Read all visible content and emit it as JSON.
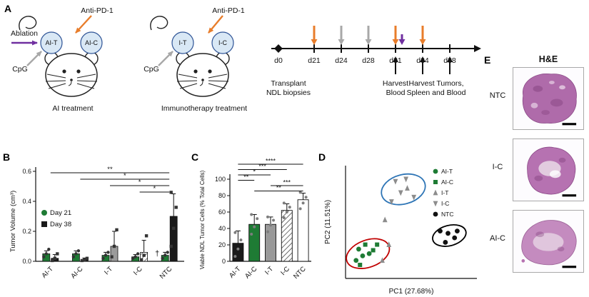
{
  "panels": {
    "a": "A",
    "b": "B",
    "c": "C",
    "d": "D",
    "e": "E"
  },
  "panel_a": {
    "anti_pd1_label": "Anti-PD-1",
    "ablation_label": "Ablation",
    "cpg_label": "CpG",
    "mouse1": {
      "tumor_left": "AI-T",
      "tumor_right": "AI-C",
      "caption": "AI treatment"
    },
    "mouse2": {
      "tumor_left": "I-T",
      "tumor_right": "I-C",
      "caption": "Immunotherapy treatment"
    },
    "colors": {
      "orange": "#E87D2B",
      "purple": "#7030A0",
      "gray": "#A8A8A8",
      "tumor_fill": "#D9E8F5",
      "tumor_stroke": "#2F5496"
    },
    "timeline": {
      "days": [
        "d0",
        "d21",
        "d24",
        "d28",
        "d31",
        "d34",
        "d38"
      ],
      "arrows_above": [
        {
          "day": "d21",
          "color": "#E87D2B",
          "short": false
        },
        {
          "day": "d24",
          "color": "#A8A8A8",
          "short": false
        },
        {
          "day": "d28",
          "color": "#A8A8A8",
          "short": false
        },
        {
          "day": "d31",
          "color": "#E87D2B",
          "short": false
        },
        {
          "day": "d31",
          "color": "#7030A0",
          "short": true
        },
        {
          "day": "d34",
          "color": "#E87D2B",
          "short": false
        }
      ],
      "events": [
        {
          "day": "d0",
          "text": "Transplant\nNDL biopsies",
          "arrows": []
        },
        {
          "day": "d31",
          "text": "Harvest\nBlood",
          "arrows": [
            "d31"
          ]
        },
        {
          "day": "d34",
          "text": "Harvest Tumors,\nSpleen and Blood",
          "arrows": [
            "d34",
            "d38"
          ],
          "center_between": [
            "d34",
            "d38"
          ]
        }
      ]
    }
  },
  "chart_data": [
    {
      "id": "tumor_volume",
      "type": "bar",
      "ylabel": "Tumor Volume (cm³)",
      "ylim": [
        0,
        0.6
      ],
      "yticks": [
        0,
        0.2,
        0.4,
        0.6
      ],
      "ytick_labels": [
        "0.0",
        "0.2",
        "0.4",
        "0.6"
      ],
      "categories": [
        "AI-T",
        "AI-C",
        "I-T",
        "I-C",
        "NTC"
      ],
      "series": [
        {
          "name": "Day 21",
          "marker": "circle",
          "color": "#1E7B34",
          "values": [
            0.05,
            0.05,
            0.04,
            0.03,
            0.04
          ],
          "errors": [
            0.02,
            0.02,
            0.02,
            0.015,
            0.02
          ],
          "points": [
            [
              0.03,
              0.05,
              0.08
            ],
            [
              0.03,
              0.05,
              0.07
            ],
            [
              0.02,
              0.04,
              0.06
            ],
            [
              0.02,
              0.03,
              0.05
            ],
            [
              0.02,
              0.04,
              0.06
            ]
          ]
        },
        {
          "name": "Day 38",
          "marker": "square",
          "color": "#1a1a1a",
          "values": [
            0.02,
            0.01,
            0.1,
            0.06,
            0.3
          ],
          "errors": [
            0.025,
            0.012,
            0.1,
            0.08,
            0.15
          ],
          "points": [
            [
              0.005,
              0.02,
              0.05
            ],
            [
              0.005,
              0.01,
              0.02
            ],
            [
              0.03,
              0.1,
              0.21
            ],
            [
              0.01,
              0.04,
              0.17
            ],
            [
              0.1,
              0.22,
              0.36,
              0.46
            ]
          ]
        }
      ],
      "bar_styles_day38": [
        "solid",
        "solid",
        "gray",
        "hatch",
        "solid"
      ],
      "significance": [
        {
          "from": "AI-T",
          "to": "NTC",
          "label": "**"
        },
        {
          "from": "AI-C",
          "to": "NTC",
          "label": "*"
        },
        {
          "from": "I-T",
          "to": "NTC",
          "label": "*"
        },
        {
          "from": "I-C",
          "to": "NTC",
          "label": "*"
        }
      ],
      "dagger": {
        "category": "NTC",
        "label": "†"
      }
    },
    {
      "id": "viable_cells",
      "type": "bar",
      "ylabel": "Viable NDL Tumor Cells (% Total Cells)",
      "ylim": [
        0,
        100
      ],
      "yticks": [
        0,
        20,
        40,
        60,
        80,
        100
      ],
      "ytick_labels": [
        "0",
        "20",
        "40",
        "60",
        "80",
        "100"
      ],
      "categories": [
        "AI-T",
        "AI-C",
        "I-T",
        "I-C",
        "NTC"
      ],
      "values": [
        22,
        45,
        45,
        62,
        75
      ],
      "errors": [
        15,
        12,
        9,
        8,
        8
      ],
      "points": [
        [
          6,
          15,
          26,
          35
        ],
        [
          33,
          42,
          52,
          57
        ],
        [
          36,
          44,
          50,
          54
        ],
        [
          53,
          60,
          66,
          71
        ],
        [
          64,
          71,
          78,
          84
        ]
      ],
      "styles": [
        "black",
        "green",
        "gray",
        "hatch",
        "white"
      ],
      "significance": [
        {
          "from": "AI-T",
          "to": "NTC",
          "label": "****"
        },
        {
          "from": "AI-T",
          "to": "I-C",
          "label": "***"
        },
        {
          "from": "AI-T",
          "to": "I-T",
          "label": "*"
        },
        {
          "from": "AI-T",
          "to": "AI-C",
          "label": "**"
        },
        {
          "from": "I-T",
          "to": "NTC",
          "label": "***"
        },
        {
          "from": "AI-C",
          "to": "NTC",
          "label": "**"
        }
      ]
    },
    {
      "id": "pca",
      "type": "scatter",
      "xlabel": "PC1 (27.68%)",
      "ylabel": "PC2 (11.51%)",
      "series": [
        {
          "name": "AI-T",
          "marker": "circle",
          "color": "#1E7B34",
          "points": [
            [
              0.1,
              0.26
            ],
            [
              0.13,
              0.2
            ],
            [
              0.08,
              0.16
            ],
            [
              0.18,
              0.22
            ]
          ]
        },
        {
          "name": "AI-C",
          "marker": "square",
          "color": "#1E7B34",
          "points": [
            [
              0.15,
              0.3
            ],
            [
              0.21,
              0.25
            ],
            [
              0.11,
              0.12
            ],
            [
              0.24,
              0.3
            ]
          ]
        },
        {
          "name": "I-T",
          "marker": "triangle-up",
          "color": "#8C8C8C",
          "points": [
            [
              0.28,
              0.16
            ],
            [
              0.33,
              0.3
            ],
            [
              0.47,
              0.8
            ],
            [
              0.3,
              0.52
            ]
          ]
        },
        {
          "name": "I-C",
          "marker": "triangle-down",
          "color": "#8C8C8C",
          "points": [
            [
              0.38,
              0.86
            ],
            [
              0.46,
              0.88
            ],
            [
              0.42,
              0.76
            ],
            [
              0.52,
              0.72
            ],
            [
              0.35,
              0.68
            ]
          ]
        },
        {
          "name": "NTC",
          "marker": "circle",
          "color": "#111111",
          "points": [
            [
              0.72,
              0.42
            ],
            [
              0.78,
              0.4
            ],
            [
              0.83,
              0.36
            ],
            [
              0.76,
              0.32
            ],
            [
              0.85,
              0.42
            ]
          ]
        }
      ],
      "ellipses": [
        {
          "color": "#2E75B6",
          "cx": 0.44,
          "cy": 0.79,
          "rx": 0.17,
          "ry": 0.13,
          "rot": -15
        },
        {
          "color": "#C00000",
          "cx": 0.17,
          "cy": 0.22,
          "rx": 0.17,
          "ry": 0.12,
          "rot": -20
        },
        {
          "color": "#000000",
          "cx": 0.79,
          "cy": 0.38,
          "rx": 0.13,
          "ry": 0.09,
          "rot": -15
        }
      ]
    }
  ],
  "panel_e": {
    "title": "H&E",
    "rows": [
      {
        "label": "NTC"
      },
      {
        "label": "I-C"
      },
      {
        "label": "AI-C"
      }
    ]
  }
}
